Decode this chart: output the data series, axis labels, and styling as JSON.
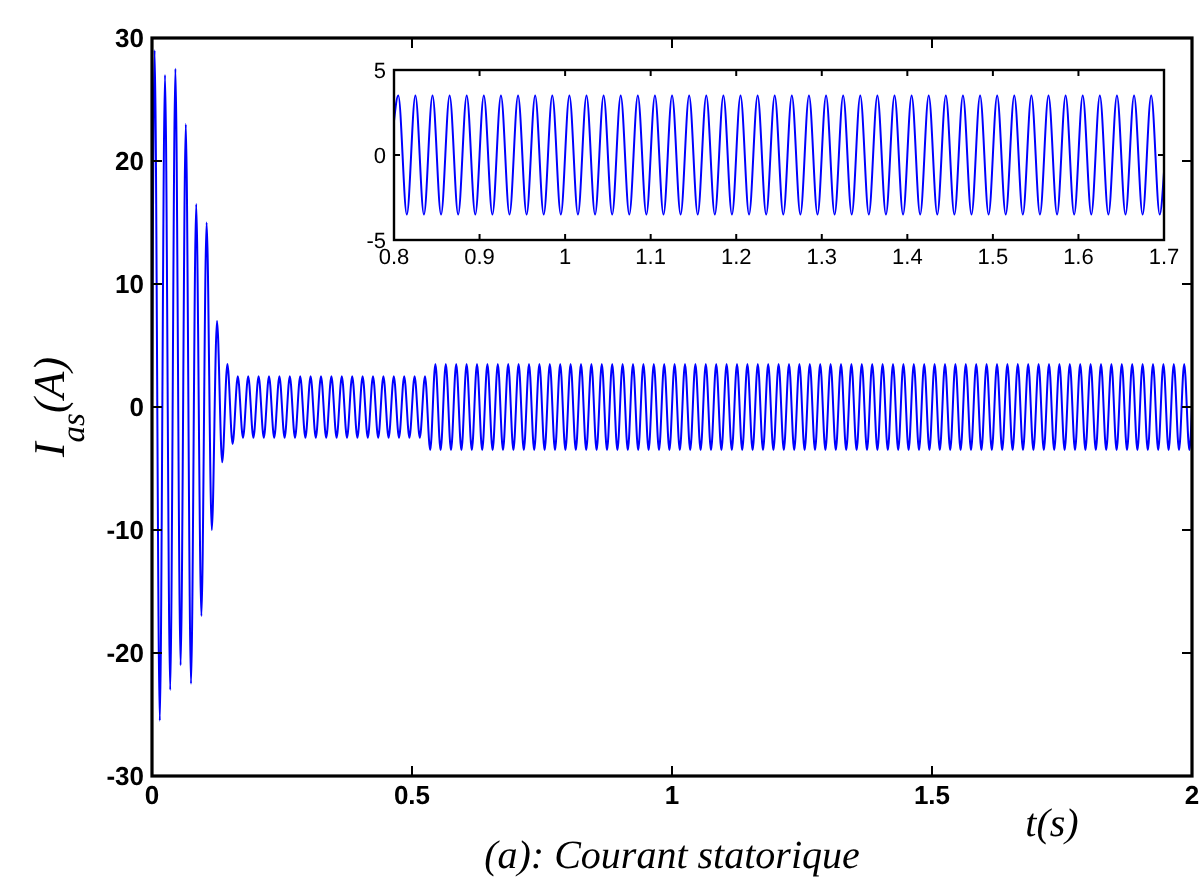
{
  "chart_data": [
    {
      "type": "line",
      "title": "(a): Courant statorique",
      "xlabel": "t(s)",
      "ylabel": "I$_{as}$(A)",
      "xlim": [
        0,
        2
      ],
      "ylim": [
        -30,
        30
      ],
      "xticks": [
        0,
        0.5,
        1,
        1.5,
        2
      ],
      "yticks": [
        -30,
        -20,
        -10,
        0,
        10,
        20,
        30
      ],
      "series": [
        {
          "color": "#0000ff",
          "x": [
            0,
            0.005,
            0.015,
            0.025,
            0.035,
            0.045,
            0.055,
            0.065,
            0.075,
            0.085,
            0.095,
            0.105,
            0.115,
            0.125,
            0.135,
            0.145,
            0.155,
            0.165,
            0.175,
            0.185,
            0.195,
            0.205,
            0.215,
            0.225,
            0.235,
            0.245,
            0.255,
            0.265,
            0.275,
            0.285,
            0.295,
            0.305,
            0.315,
            0.325,
            0.335,
            0.345,
            0.355,
            0.365,
            0.375,
            0.385,
            0.395,
            0.405,
            0.415,
            0.425,
            0.435,
            0.445,
            0.455,
            0.465,
            0.475,
            0.485,
            0.495,
            0.505,
            0.515,
            0.525,
            0.535,
            0.545,
            0.555,
            0.565,
            0.575,
            0.585,
            0.595,
            0.605,
            0.615,
            0.625,
            0.635,
            0.645,
            0.655,
            0.665,
            0.675,
            0.685,
            0.695,
            0.705,
            0.715,
            0.725,
            0.735,
            0.745,
            0.755,
            0.765,
            0.775,
            0.785,
            0.795,
            0.805,
            0.815,
            0.825,
            0.835,
            0.845,
            0.855,
            0.865,
            0.875,
            0.885,
            0.895,
            0.905,
            0.915,
            0.925,
            0.935,
            0.945,
            0.955,
            0.965,
            0.975,
            0.985,
            0.995,
            1.005,
            1.015,
            1.025,
            1.035,
            1.045,
            1.055,
            1.065,
            1.075,
            1.085,
            1.095,
            1.105,
            1.115,
            1.125,
            1.135,
            1.145,
            1.155,
            1.165,
            1.175,
            1.185,
            1.195,
            1.205,
            1.215,
            1.225,
            1.235,
            1.245,
            1.255,
            1.265,
            1.275,
            1.285,
            1.295,
            1.305,
            1.315,
            1.325,
            1.335,
            1.345,
            1.355,
            1.365,
            1.375,
            1.385,
            1.395,
            1.405,
            1.415,
            1.425,
            1.435,
            1.445,
            1.455,
            1.465,
            1.475,
            1.485,
            1.495,
            1.505,
            1.515,
            1.525,
            1.535,
            1.545,
            1.555,
            1.565,
            1.575,
            1.585,
            1.595,
            1.605,
            1.615,
            1.625,
            1.635,
            1.645,
            1.655,
            1.665,
            1.675,
            1.685,
            1.695,
            1.705,
            1.715,
            1.725,
            1.735,
            1.745,
            1.755,
            1.765,
            1.775,
            1.785,
            1.795,
            1.805,
            1.815,
            1.825,
            1.835,
            1.845,
            1.855,
            1.865,
            1.875,
            1.885,
            1.895,
            1.905,
            1.915,
            1.925,
            1.935,
            1.945,
            1.955,
            1.965,
            1.975,
            1.985,
            1.995,
            2
          ],
          "values": [
            0,
            29,
            -25.5,
            27,
            -23,
            27.5,
            -21,
            23,
            -22.5,
            16.5,
            -17,
            15,
            -10,
            7,
            -4.5,
            3.5,
            -3,
            2.5,
            -2.5,
            2.5,
            -2.5,
            2.5,
            -2.5,
            2.5,
            -2.5,
            2.5,
            -2.5,
            2.5,
            -2.5,
            2.5,
            -2.5,
            2.5,
            -2.5,
            2.5,
            -2.5,
            2.5,
            -2.5,
            2.5,
            -2.5,
            2.5,
            -2.5,
            2.5,
            -2.5,
            2.5,
            -2.5,
            2.5,
            -2.5,
            2.5,
            -2.5,
            2.5,
            -2.5,
            2.5,
            -2.5,
            2.5,
            -3.5,
            3.5,
            -3.5,
            3.5,
            -3.5,
            3.5,
            -3.5,
            3.5,
            -3.5,
            3.5,
            -3.5,
            3.5,
            -3.5,
            3.5,
            -3.5,
            3.5,
            -3.5,
            3.5,
            -3.5,
            3.5,
            -3.5,
            3.5,
            -3.5,
            3.5,
            -3.5,
            3.5,
            -3.5,
            3.5,
            -3.5,
            3.5,
            -3.5,
            3.5,
            -3.5,
            3.5,
            -3.5,
            3.5,
            -3.5,
            3.5,
            -3.5,
            3.5,
            -3.5,
            3.5,
            -3.5,
            3.5,
            -3.5,
            3.5,
            -3.5,
            3.5,
            -3.5,
            3.5,
            -3.5,
            3.5,
            -3.5,
            3.5,
            -3.5,
            3.5,
            -3.5,
            3.5,
            -3.5,
            3.5,
            -3.5,
            3.5,
            -3.5,
            3.5,
            -3.5,
            3.5,
            -3.5,
            3.5,
            -3.5,
            3.5,
            -3.5,
            3.5,
            -3.5,
            3.5,
            -3.5,
            3.5,
            -3.5,
            3.5,
            -3.5,
            3.5,
            -3.5,
            3.5,
            -3.5,
            3.5,
            -3.5,
            3.5,
            -3.5,
            3.5,
            -3.5,
            3.5,
            -3.5,
            3.5,
            -3.5,
            3.5,
            -3.5,
            3.5,
            -3.5,
            3.5,
            -3.5,
            3.5,
            -3.5,
            3.5,
            -3.5,
            3.5,
            -3.5,
            3.5,
            -3.5,
            3.5,
            -3.5,
            3.5,
            -3.5,
            3.5,
            -3.5,
            3.5,
            -3.5,
            3.5,
            -3.5,
            3.5,
            -3.5,
            3.5,
            -3.5,
            3.5,
            -3.5,
            3.5,
            -3.5,
            3.5,
            -3.5,
            3.5,
            -3.5,
            3.5,
            -3.5,
            3.5,
            -3.5,
            3.5,
            -3.5,
            3.5,
            -3.5,
            3.5,
            -3.5,
            3.5,
            -3.5,
            3.5,
            -3.5,
            3.5,
            -3.5,
            3.5,
            -3.5,
            0
          ]
        }
      ]
    },
    {
      "type": "line",
      "xlim": [
        0.8,
        1.7
      ],
      "ylim": [
        -5,
        5
      ],
      "xticks": [
        0.8,
        0.9,
        1,
        1.1,
        1.2,
        1.3,
        1.4,
        1.5,
        1.6,
        1.7
      ],
      "yticks": [
        -5,
        0,
        5
      ],
      "series": [
        {
          "color": "#0000ff",
          "x": [
            0.8,
            0.805,
            0.815,
            0.825,
            0.835,
            0.845,
            0.855,
            0.865,
            0.875,
            0.885,
            0.895,
            0.905,
            0.915,
            0.925,
            0.935,
            0.945,
            0.955,
            0.965,
            0.975,
            0.985,
            0.995,
            1.005,
            1.015,
            1.025,
            1.035,
            1.045,
            1.055,
            1.065,
            1.075,
            1.085,
            1.095,
            1.105,
            1.115,
            1.125,
            1.135,
            1.145,
            1.155,
            1.165,
            1.175,
            1.185,
            1.195,
            1.205,
            1.215,
            1.225,
            1.235,
            1.245,
            1.255,
            1.265,
            1.275,
            1.285,
            1.295,
            1.305,
            1.315,
            1.325,
            1.335,
            1.345,
            1.355,
            1.365,
            1.375,
            1.385,
            1.395,
            1.405,
            1.415,
            1.425,
            1.435,
            1.445,
            1.455,
            1.465,
            1.475,
            1.485,
            1.495,
            1.505,
            1.515,
            1.525,
            1.535,
            1.545,
            1.555,
            1.565,
            1.575,
            1.585,
            1.595,
            1.605,
            1.615,
            1.625,
            1.635,
            1.645,
            1.655,
            1.665,
            1.675,
            1.685,
            1.695,
            1.7
          ],
          "values": [
            2,
            3.5,
            -3.5,
            3.5,
            -3.5,
            3.5,
            -3.5,
            3.5,
            -3.5,
            3.5,
            -3.5,
            3.5,
            -3.5,
            3.5,
            -3.5,
            3.5,
            -3.5,
            3.5,
            -3.5,
            3.5,
            -3.5,
            3.5,
            -3.5,
            3.5,
            -3.5,
            3.5,
            -3.5,
            3.5,
            -3.5,
            3.5,
            -3.5,
            3.5,
            -3.5,
            3.5,
            -3.5,
            3.5,
            -3.5,
            3.5,
            -3.5,
            3.5,
            -3.5,
            3.5,
            -3.5,
            3.5,
            -3.5,
            3.5,
            -3.5,
            3.5,
            -3.5,
            3.5,
            -3.5,
            3.5,
            -3.5,
            3.5,
            -3.5,
            3.5,
            -3.5,
            3.5,
            -3.5,
            3.5,
            -3.5,
            3.5,
            -3.5,
            3.5,
            -3.5,
            3.5,
            -3.5,
            3.5,
            -3.5,
            3.5,
            -3.5,
            3.5,
            -3.5,
            3.5,
            -3.5,
            3.5,
            -3.5,
            3.5,
            -3.5,
            3.5,
            -3.5,
            3.5,
            -3.5,
            3.5,
            -3.5,
            3.5,
            -3.5,
            3.5,
            -3.5,
            3.5,
            -3.5,
            -1
          ]
        }
      ]
    }
  ]
}
